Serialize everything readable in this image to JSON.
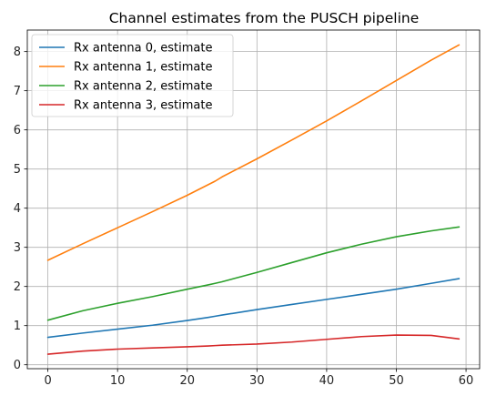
{
  "chart_data": {
    "type": "line",
    "title": "Channel estimates from the PUSCH pipeline",
    "xlabel": "",
    "ylabel": "",
    "xlim": [
      -2.95,
      61.95
    ],
    "ylim": [
      -0.1,
      8.55
    ],
    "xticks": [
      0,
      10,
      20,
      30,
      40,
      50,
      60
    ],
    "yticks": [
      0,
      1,
      2,
      3,
      4,
      5,
      6,
      7,
      8
    ],
    "grid": true,
    "legend_position": "top-left",
    "x": [
      0,
      5,
      10,
      15,
      20,
      23,
      24,
      25,
      30,
      35,
      40,
      45,
      50,
      55,
      59
    ],
    "series": [
      {
        "name": "Rx antenna 0, estimate",
        "color": "#1f77b4",
        "values": [
          0.7,
          0.81,
          0.91,
          1.01,
          1.13,
          1.21,
          1.24,
          1.27,
          1.41,
          1.54,
          1.67,
          1.8,
          1.93,
          2.08,
          2.2
        ]
      },
      {
        "name": "Rx antenna 1, estimate",
        "color": "#ff7f0e",
        "values": [
          2.67,
          3.09,
          3.5,
          3.91,
          4.33,
          4.6,
          4.69,
          4.8,
          5.26,
          5.74,
          6.23,
          6.74,
          7.26,
          7.78,
          8.17
        ]
      },
      {
        "name": "Rx antenna 2, estimate",
        "color": "#2ca02c",
        "values": [
          1.14,
          1.38,
          1.57,
          1.74,
          1.93,
          2.04,
          2.08,
          2.12,
          2.36,
          2.61,
          2.86,
          3.08,
          3.27,
          3.42,
          3.52
        ]
      },
      {
        "name": "Rx antenna 3, estimate",
        "color": "#d62728",
        "values": [
          0.27,
          0.35,
          0.4,
          0.43,
          0.46,
          0.48,
          0.49,
          0.5,
          0.53,
          0.58,
          0.65,
          0.72,
          0.76,
          0.75,
          0.66
        ]
      }
    ]
  }
}
